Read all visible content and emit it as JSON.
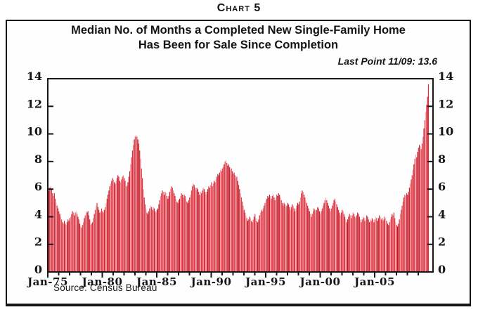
{
  "page": {
    "chart_label": "Chart 5",
    "source": "Source: Census Bureau"
  },
  "chart_data": {
    "type": "bar",
    "title_line1": "Median No. of Months a Completed New Single-Family Home",
    "title_line2": "Has Been for Sale Since Completion",
    "annotation": "Last Point 11/09: 13.6",
    "last_point": {
      "date": "11/09",
      "value": 13.6
    },
    "x_start": "1975-01",
    "x_end": "2009-11",
    "frequency": "monthly",
    "ylim": [
      0,
      14
    ],
    "y_ticks": [
      0,
      2,
      4,
      6,
      8,
      10,
      12,
      14
    ],
    "x_major_tick_labels": [
      "Jan-75",
      "Jan-80",
      "Jan-85",
      "Jan-90",
      "Jan-95",
      "Jan-00",
      "Jan-05"
    ],
    "x_minor_ticks": "yearly",
    "grid": false,
    "legend": "none",
    "bar_palette": [
      "#de2d3b",
      "#c41f2d",
      "#f2979e",
      "#e63a47",
      "#de2d3b",
      "#ef7a83",
      "#c41f2d",
      "#e63a47",
      "#f6b0b5",
      "#de2d3b",
      "#b51d29"
    ],
    "values": [
      5.9,
      6.1,
      6.2,
      6.0,
      5.7,
      5.5,
      5.7,
      5.3,
      5.0,
      4.8,
      4.6,
      4.4,
      4.2,
      4.0,
      3.8,
      3.6,
      3.5,
      3.7,
      3.5,
      3.4,
      3.6,
      3.8,
      3.7,
      3.9,
      4.0,
      4.2,
      4.4,
      4.3,
      4.1,
      4.3,
      4.4,
      4.2,
      4.0,
      3.8,
      3.5,
      3.3,
      3.2,
      3.4,
      3.6,
      3.9,
      4.1,
      4.4,
      4.3,
      4.4,
      4.1,
      3.8,
      3.4,
      3.5,
      3.6,
      3.9,
      4.2,
      4.5,
      4.8,
      5.0,
      4.7,
      4.5,
      4.3,
      4.4,
      4.6,
      4.4,
      4.3,
      4.5,
      4.7,
      5.0,
      5.3,
      5.6,
      5.9,
      6.2,
      6.4,
      6.6,
      6.8,
      6.7,
      6.5,
      6.4,
      6.6,
      6.8,
      7.0,
      6.9,
      6.6,
      6.5,
      6.7,
      6.9,
      7.0,
      6.8,
      6.6,
      6.3,
      6.2,
      6.5,
      6.9,
      7.3,
      7.8,
      8.3,
      8.8,
      9.2,
      9.6,
      9.8,
      9.9,
      9.8,
      9.6,
      9.3,
      8.8,
      8.2,
      7.5,
      6.8,
      6.0,
      5.4,
      4.9,
      4.6,
      4.3,
      4.2,
      4.4,
      4.6,
      4.8,
      4.7,
      4.5,
      4.7,
      4.6,
      4.4,
      4.3,
      4.5,
      4.6,
      4.9,
      5.2,
      5.5,
      5.7,
      5.9,
      5.8,
      5.6,
      5.8,
      5.7,
      5.5,
      5.3,
      5.5,
      5.8,
      6.0,
      6.2,
      6.1,
      5.9,
      5.7,
      5.5,
      5.3,
      5.1,
      5.0,
      5.2,
      5.3,
      5.5,
      5.7,
      5.6,
      5.4,
      5.6,
      5.5,
      5.3,
      5.1,
      5.0,
      5.2,
      5.4,
      5.6,
      5.9,
      6.2,
      6.4,
      6.3,
      6.1,
      5.9,
      6.1,
      6.0,
      5.8,
      5.6,
      5.8,
      5.7,
      5.9,
      6.1,
      6.0,
      5.8,
      5.6,
      5.8,
      6.0,
      6.2,
      6.1,
      6.3,
      6.5,
      6.2,
      6.4,
      6.6,
      6.5,
      6.7,
      6.9,
      7.1,
      7.0,
      7.2,
      7.4,
      7.3,
      7.5,
      7.6,
      7.8,
      8.0,
      8.1,
      7.9,
      7.7,
      7.8,
      7.6,
      7.4,
      7.5,
      7.3,
      7.1,
      7.2,
      7.0,
      6.8,
      6.9,
      6.6,
      6.3,
      6.0,
      5.7,
      5.4,
      5.1,
      4.8,
      4.5,
      4.3,
      4.1,
      3.9,
      3.7,
      3.8,
      4.0,
      3.9,
      3.7,
      3.6,
      3.8,
      4.0,
      4.2,
      3.9,
      3.7,
      3.6,
      3.8,
      4.1,
      4.3,
      4.5,
      4.4,
      4.6,
      4.8,
      5.0,
      5.2,
      5.3,
      5.5,
      5.4,
      5.6,
      5.5,
      5.3,
      5.5,
      5.6,
      5.4,
      5.2,
      5.4,
      5.6,
      5.5,
      5.7,
      5.6,
      5.4,
      5.2,
      5.0,
      4.8,
      5.0,
      4.9,
      4.7,
      4.8,
      5.0,
      4.9,
      4.7,
      4.5,
      4.7,
      4.9,
      4.8,
      4.6,
      4.4,
      4.6,
      4.8,
      5.0,
      4.9,
      5.1,
      5.4,
      5.7,
      5.9,
      5.8,
      5.6,
      5.4,
      5.2,
      5.0,
      4.8,
      4.6,
      4.4,
      4.2,
      4.0,
      4.2,
      4.4,
      4.6,
      4.5,
      4.3,
      4.5,
      4.7,
      4.6,
      4.4,
      4.2,
      4.4,
      4.6,
      4.8,
      5.0,
      5.2,
      5.4,
      5.2,
      5.0,
      4.8,
      4.6,
      4.4,
      4.6,
      4.8,
      5.0,
      5.2,
      5.3,
      5.1,
      4.9,
      4.7,
      4.5,
      4.3,
      4.1,
      4.3,
      4.5,
      4.4,
      4.2,
      4.0,
      3.8,
      3.6,
      3.8,
      4.0,
      4.2,
      4.1,
      3.9,
      4.1,
      4.3,
      4.2,
      4.0,
      3.9,
      4.1,
      4.3,
      4.2,
      4.0,
      3.8,
      3.6,
      3.8,
      4.0,
      3.9,
      3.7,
      3.9,
      4.1,
      4.0,
      3.8,
      3.6,
      3.8,
      3.7,
      3.9,
      3.8,
      3.6,
      3.8,
      4.0,
      3.9,
      3.7,
      3.9,
      4.1,
      4.0,
      3.8,
      3.9,
      3.7,
      3.8,
      4.0,
      3.9,
      3.7,
      3.5,
      3.4,
      3.6,
      3.8,
      4.0,
      4.2,
      4.1,
      4.3,
      3.9,
      3.6,
      3.4,
      3.3,
      3.5,
      3.8,
      4.2,
      4.5,
      4.8,
      5.1,
      5.4,
      5.6,
      5.5,
      5.7,
      5.6,
      5.8,
      6.1,
      6.4,
      6.7,
      7.0,
      7.4,
      7.8,
      8.2,
      8.5,
      8.3,
      8.7,
      9.0,
      9.2,
      9.1,
      8.9,
      9.3,
      9.8,
      10.4,
      11.0,
      11.6,
      12.1,
      12.7,
      13.6
    ]
  }
}
